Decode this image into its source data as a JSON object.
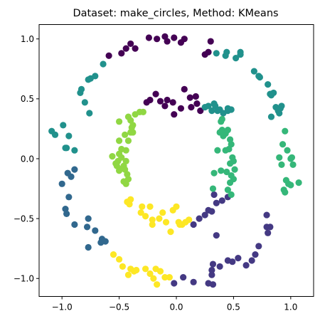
{
  "chart_data": {
    "type": "scatter",
    "title": "Dataset: make_circles, Method: KMeans",
    "xlabel": "",
    "ylabel": "",
    "xlim": [
      -1.2,
      1.2
    ],
    "ylim": [
      -1.15,
      1.12
    ],
    "xticks": [
      -1.0,
      -0.5,
      0.0,
      0.5,
      1.0
    ],
    "yticks": [
      -1.0,
      -0.5,
      0.0,
      0.5,
      1.0
    ],
    "xtick_labels": [
      "−1.0",
      "−0.5",
      "0.0",
      "0.5",
      "1.0"
    ],
    "ytick_labels": [
      "−1.0",
      "−0.5",
      "0.0",
      "0.5",
      "1.0"
    ],
    "grid": false,
    "legend": "none",
    "cluster_colors": [
      "#440154",
      "#443983",
      "#31688e",
      "#21918c",
      "#35b779",
      "#90d743",
      "#fde725"
    ],
    "points": [
      [
        -0.24,
        1.01,
        0
      ],
      [
        -0.17,
        1.0,
        0
      ],
      [
        -0.1,
        1.02,
        0
      ],
      [
        -0.08,
        0.98,
        0
      ],
      [
        -0.02,
        1.01,
        0
      ],
      [
        0.04,
        0.97,
        0
      ],
      [
        0.07,
        1.0,
        0
      ],
      [
        0.25,
        0.87,
        0
      ],
      [
        0.28,
        0.89,
        0
      ],
      [
        0.3,
        0.98,
        0
      ],
      [
        -0.36,
        0.92,
        0
      ],
      [
        -0.4,
        0.96,
        0
      ],
      [
        -0.44,
        0.92,
        0
      ],
      [
        -0.48,
        0.88,
        0
      ],
      [
        -0.18,
        0.54,
        0
      ],
      [
        -0.14,
        0.48,
        0
      ],
      [
        -0.08,
        0.49,
        0
      ],
      [
        -0.03,
        0.47,
        0
      ],
      [
        -0.02,
        0.37,
        0
      ],
      [
        0.04,
        0.42,
        0
      ],
      [
        0.07,
        0.58,
        0
      ],
      [
        0.12,
        0.51,
        0
      ],
      [
        0.13,
        0.43,
        0
      ],
      [
        0.17,
        0.52,
        0
      ],
      [
        0.18,
        0.46,
        0
      ],
      [
        0.21,
        0.4,
        0
      ],
      [
        -0.23,
        0.49,
        0
      ],
      [
        -0.26,
        0.47,
        0
      ],
      [
        -0.1,
        0.44,
        0
      ],
      [
        -0.59,
        0.86,
        0
      ],
      [
        0.15,
        -0.55,
        1
      ],
      [
        0.2,
        -0.5,
        1
      ],
      [
        0.25,
        -0.47,
        1
      ],
      [
        0.28,
        -0.43,
        1
      ],
      [
        0.31,
        -0.44,
        1
      ],
      [
        0.35,
        -0.37,
        1
      ],
      [
        0.33,
        -0.3,
        1
      ],
      [
        0.4,
        -0.35,
        1
      ],
      [
        0.45,
        -0.32,
        1
      ],
      [
        0.35,
        -0.64,
        1
      ],
      [
        0.79,
        -0.47,
        1
      ],
      [
        0.79,
        -0.57,
        1
      ],
      [
        0.82,
        -0.57,
        1
      ],
      [
        0.8,
        -0.62,
        1
      ],
      [
        0.72,
        -0.73,
        1
      ],
      [
        0.69,
        -0.8,
        1
      ],
      [
        0.66,
        -0.85,
        1
      ],
      [
        0.61,
        -0.89,
        1
      ],
      [
        0.54,
        -0.83,
        1
      ],
      [
        0.45,
        -0.85,
        1
      ],
      [
        0.38,
        -0.9,
        1
      ],
      [
        0.32,
        -0.88,
        1
      ],
      [
        0.31,
        -0.97,
        1
      ],
      [
        0.28,
        -1.04,
        1
      ],
      [
        0.32,
        -1.05,
        1
      ],
      [
        0.15,
        -1.03,
        1
      ],
      [
        0.06,
        -0.99,
        1
      ],
      [
        -0.02,
        -1.04,
        1
      ],
      [
        0.31,
        -0.93,
        1
      ],
      [
        0.49,
        -0.86,
        1
      ],
      [
        -1.0,
        -0.21,
        2
      ],
      [
        -0.97,
        -0.42,
        2
      ],
      [
        -0.96,
        -0.46,
        2
      ],
      [
        -0.94,
        -0.32,
        2
      ],
      [
        -0.92,
        -0.15,
        2
      ],
      [
        -0.95,
        -0.12,
        2
      ],
      [
        -0.89,
        -0.55,
        2
      ],
      [
        -0.77,
        -0.5,
        2
      ],
      [
        -0.78,
        -0.57,
        2
      ],
      [
        -0.71,
        -0.6,
        2
      ],
      [
        -0.65,
        -0.67,
        2
      ],
      [
        -0.66,
        -0.7,
        2
      ],
      [
        -0.62,
        -0.69,
        2
      ],
      [
        -0.77,
        -0.74,
        2
      ],
      [
        -0.89,
        -0.09,
        2
      ],
      [
        -1.09,
        0.23,
        3
      ],
      [
        -1.06,
        0.2,
        3
      ],
      [
        -0.99,
        0.28,
        3
      ],
      [
        -0.97,
        0.09,
        3
      ],
      [
        -0.94,
        0.19,
        3
      ],
      [
        -0.89,
        0.07,
        3
      ],
      [
        -0.8,
        0.47,
        3
      ],
      [
        -0.84,
        0.55,
        3
      ],
      [
        -0.83,
        0.58,
        3
      ],
      [
        -0.76,
        0.38,
        3
      ],
      [
        -0.75,
        0.67,
        3
      ],
      [
        -0.71,
        0.69,
        3
      ],
      [
        -0.64,
        0.79,
        3
      ],
      [
        -0.77,
        0.66,
        3
      ],
      [
        -0.96,
        0.09,
        3
      ],
      [
        0.35,
        0.88,
        3
      ],
      [
        0.43,
        0.86,
        3
      ],
      [
        0.44,
        0.89,
        3
      ],
      [
        0.52,
        0.84,
        3
      ],
      [
        0.56,
        0.89,
        3
      ],
      [
        0.56,
        0.87,
        3
      ],
      [
        0.68,
        0.73,
        3
      ],
      [
        0.72,
        0.69,
        3
      ],
      [
        0.73,
        0.68,
        3
      ],
      [
        0.8,
        0.62,
        3
      ],
      [
        0.85,
        0.55,
        3
      ],
      [
        0.83,
        0.53,
        3
      ],
      [
        0.82,
        0.54,
        3
      ],
      [
        0.87,
        0.43,
        3
      ],
      [
        0.91,
        0.42,
        3
      ],
      [
        0.9,
        0.38,
        3
      ],
      [
        0.92,
        0.44,
        3
      ],
      [
        0.83,
        0.35,
        3
      ],
      [
        0.89,
        0.4,
        3
      ],
      [
        0.28,
        0.44,
        3
      ],
      [
        0.31,
        0.4,
        3
      ],
      [
        0.34,
        0.44,
        3
      ],
      [
        0.38,
        0.41,
        3
      ],
      [
        0.45,
        0.4,
        3
      ],
      [
        0.48,
        0.41,
        3
      ],
      [
        0.25,
        0.43,
        3
      ],
      [
        0.33,
        0.46,
        3
      ],
      [
        0.45,
        0.42,
        3
      ],
      [
        0.41,
        0.38,
        3
      ],
      [
        0.36,
        0.4,
        3
      ],
      [
        0.38,
        0.22,
        4
      ],
      [
        0.4,
        0.24,
        4
      ],
      [
        0.43,
        0.21,
        4
      ],
      [
        0.45,
        0.24,
        4
      ],
      [
        0.4,
        0.33,
        4
      ],
      [
        0.39,
        0.31,
        4
      ],
      [
        0.36,
        0.07,
        4
      ],
      [
        0.43,
        0.07,
        4
      ],
      [
        0.48,
        0.12,
        4
      ],
      [
        0.46,
        0.08,
        4
      ],
      [
        0.5,
        -0.02,
        4
      ],
      [
        0.44,
        -0.11,
        4
      ],
      [
        0.47,
        -0.2,
        4
      ],
      [
        0.48,
        -0.3,
        4
      ],
      [
        0.5,
        -0.17,
        4
      ],
      [
        0.33,
        -0.12,
        4
      ],
      [
        0.45,
        -0.26,
        4
      ],
      [
        0.32,
        -0.25,
        4
      ],
      [
        0.47,
        0.16,
        4
      ],
      [
        0.95,
        0.23,
        4
      ],
      [
        0.93,
        0.12,
        4
      ],
      [
        0.97,
        0.07,
        4
      ],
      [
        1.0,
        0.0,
        4
      ],
      [
        1.02,
        -0.05,
        4
      ],
      [
        1.01,
        0.01,
        4
      ],
      [
        0.92,
        -0.05,
        4
      ],
      [
        0.96,
        -0.18,
        4
      ],
      [
        0.98,
        -0.21,
        4
      ],
      [
        1.0,
        -0.22,
        4
      ],
      [
        1.07,
        -0.2,
        4
      ],
      [
        0.95,
        -0.28,
        4
      ],
      [
        0.94,
        -0.26,
        4
      ],
      [
        0.49,
        0.01,
        4
      ],
      [
        0.47,
        -0.04,
        4
      ],
      [
        0.51,
        -0.09,
        4
      ],
      [
        0.41,
        0.19,
        4
      ],
      [
        0.39,
        -0.1,
        4
      ],
      [
        0.48,
        -0.14,
        4
      ],
      [
        0.9,
        0.01,
        4
      ],
      [
        -0.36,
        0.37,
        5
      ],
      [
        -0.32,
        0.39,
        5
      ],
      [
        -0.29,
        0.39,
        5
      ],
      [
        -0.4,
        0.32,
        5
      ],
      [
        -0.42,
        0.35,
        5
      ],
      [
        -0.5,
        0.31,
        5
      ],
      [
        -0.38,
        0.28,
        5
      ],
      [
        -0.39,
        0.26,
        5
      ],
      [
        -0.38,
        0.22,
        5
      ],
      [
        -0.42,
        0.15,
        5
      ],
      [
        -0.5,
        0.15,
        5
      ],
      [
        -0.48,
        0.08,
        5
      ],
      [
        -0.44,
        0.07,
        5
      ],
      [
        -0.56,
        0.02,
        5
      ],
      [
        -0.48,
        0.01,
        5
      ],
      [
        -0.44,
        -0.02,
        5
      ],
      [
        -0.46,
        -0.06,
        5
      ],
      [
        -0.47,
        -0.08,
        5
      ],
      [
        -0.5,
        -0.1,
        5
      ],
      [
        -0.52,
        -0.06,
        5
      ],
      [
        -0.45,
        -0.09,
        5
      ],
      [
        -0.44,
        -0.21,
        5
      ],
      [
        -0.42,
        -0.17,
        5
      ],
      [
        -0.46,
        -0.19,
        5
      ],
      [
        -0.51,
        -0.02,
        5
      ],
      [
        -0.53,
        -0.04,
        5
      ],
      [
        -0.5,
        0.04,
        5
      ],
      [
        -0.45,
        0.2,
        5
      ],
      [
        -0.4,
        0.22,
        5
      ],
      [
        -0.43,
        -0.13,
        5
      ],
      [
        -0.41,
        -0.38,
        6
      ],
      [
        -0.43,
        -0.36,
        6
      ],
      [
        -0.4,
        -0.34,
        6
      ],
      [
        -0.31,
        -0.45,
        6
      ],
      [
        -0.27,
        -0.48,
        6
      ],
      [
        -0.21,
        -0.51,
        6
      ],
      [
        -0.21,
        -0.55,
        6
      ],
      [
        -0.15,
        -0.5,
        6
      ],
      [
        -0.12,
        -0.45,
        6
      ],
      [
        -0.09,
        -0.53,
        6
      ],
      [
        -0.05,
        -0.61,
        6
      ],
      [
        -0.03,
        -0.43,
        6
      ],
      [
        0.03,
        -0.55,
        6
      ],
      [
        0.05,
        -0.55,
        6
      ],
      [
        0.08,
        -0.53,
        6
      ],
      [
        0.11,
        -0.51,
        6
      ],
      [
        0.0,
        -0.4,
        6
      ],
      [
        -0.23,
        -0.4,
        6
      ],
      [
        -0.3,
        -0.4,
        6
      ],
      [
        -0.55,
        -0.8,
        6
      ],
      [
        -0.5,
        -0.84,
        6
      ],
      [
        -0.47,
        -0.9,
        6
      ],
      [
        -0.42,
        -0.97,
        6
      ],
      [
        -0.37,
        -0.94,
        6
      ],
      [
        -0.35,
        -0.93,
        6
      ],
      [
        -0.27,
        -0.92,
        6
      ],
      [
        -0.2,
        -1.0,
        6
      ],
      [
        -0.18,
        -0.92,
        6
      ],
      [
        -0.14,
        -0.94,
        6
      ],
      [
        -0.1,
        -0.99,
        6
      ],
      [
        -0.06,
        -0.99,
        6
      ],
      [
        -0.17,
        -1.05,
        6
      ],
      [
        -0.4,
        -0.92,
        6
      ],
      [
        -0.23,
        -0.96,
        6
      ],
      [
        0.02,
        -0.53,
        6
      ]
    ]
  }
}
